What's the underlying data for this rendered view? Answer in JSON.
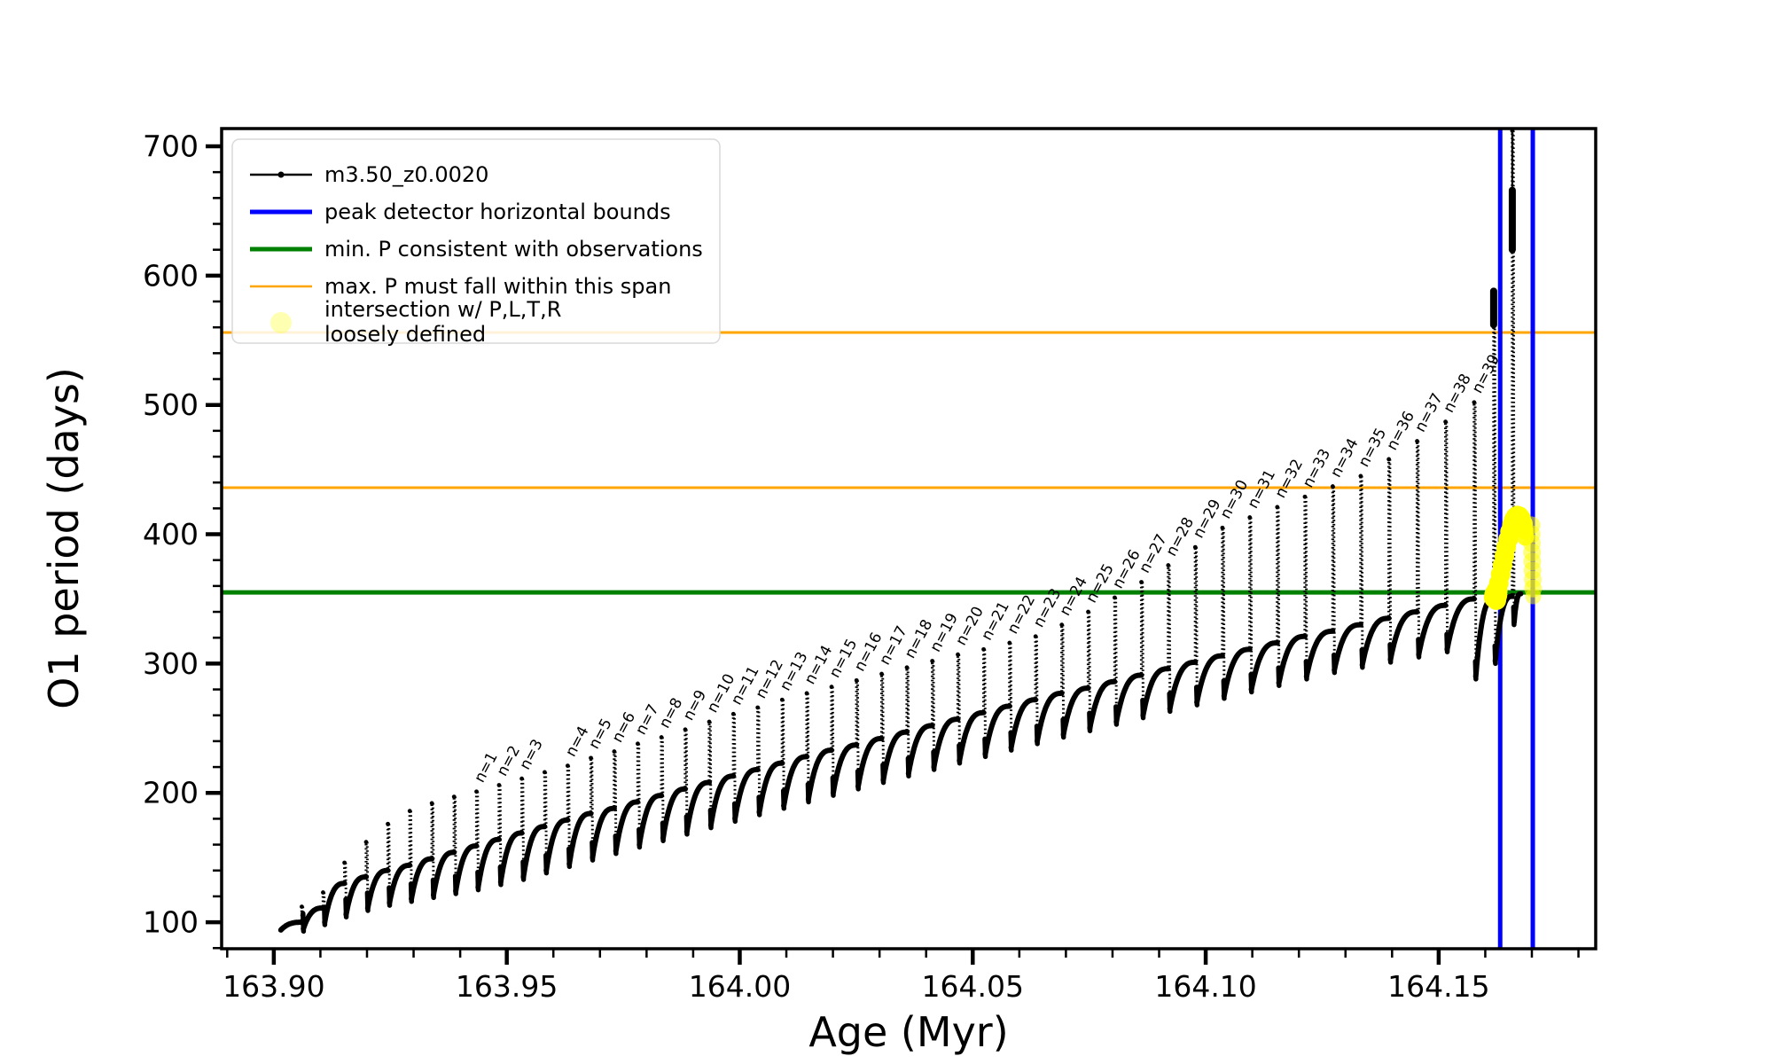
{
  "chart_data": {
    "type": "line",
    "title": "",
    "xlabel": "Age (Myr)",
    "ylabel": "O1 period (days)",
    "xlim": [
      163.8888,
      164.1837
    ],
    "ylim": [
      79.5,
      713.7
    ],
    "grid": false,
    "x_ticks": [
      163.9,
      163.95,
      164.0,
      164.05,
      164.1,
      164.15
    ],
    "x_tick_labels": [
      "163.90",
      "163.95",
      "164.00",
      "164.05",
      "164.10",
      "164.15"
    ],
    "x_minor_step": 0.01,
    "y_ticks": [
      100,
      200,
      300,
      400,
      500,
      600,
      700
    ],
    "y_tick_labels": [
      "100",
      "200",
      "300",
      "400",
      "500",
      "600",
      "700"
    ],
    "y_minor_step": 20,
    "series": [
      {
        "name": "m3.50_z0.0020",
        "color": "#000000",
        "style": "dotted pulse track"
      }
    ],
    "hlines": [
      {
        "name": "max-P-span-upper",
        "y": 556,
        "color": "#ffa500",
        "width": 3
      },
      {
        "name": "max-P-span-lower",
        "y": 436,
        "color": "#ffa500",
        "width": 3
      },
      {
        "name": "min-P-observed",
        "y": 355,
        "color": "#008000",
        "width": 5
      }
    ],
    "vlines": [
      {
        "name": "peak-detector-left",
        "x": 164.1632,
        "color": "#0000ff",
        "width": 5
      },
      {
        "name": "peak-detector-right",
        "x": 164.1702,
        "color": "#0000ff",
        "width": 5
      }
    ],
    "track_start": {
      "age": 163.9015,
      "value": 94
    },
    "track_end": {
      "age": 164.1676,
      "value": 354
    },
    "pulses": [
      {
        "a": 163.906,
        "s": 112,
        "p": 100,
        "d": 93
      },
      {
        "a": 163.91057,
        "s": 123,
        "p": 111,
        "d": 98
      },
      {
        "a": 163.91517,
        "s": 146,
        "p": 130,
        "d": 104
      },
      {
        "a": 163.91981,
        "s": 162,
        "p": 135,
        "d": 109
      },
      {
        "a": 163.92448,
        "s": 176,
        "p": 140,
        "d": 113
      },
      {
        "a": 163.92918,
        "s": 186,
        "p": 144,
        "d": 116
      },
      {
        "a": 163.93392,
        "s": 192,
        "p": 149,
        "d": 119
      },
      {
        "a": 163.93869,
        "s": 197,
        "p": 154,
        "d": 122
      },
      {
        "a": 163.9435,
        "s": 201,
        "p": 159,
        "d": 125,
        "label": "n=1"
      },
      {
        "a": 163.94834,
        "s": 206,
        "p": 164,
        "d": 129,
        "label": "n=2"
      },
      {
        "a": 163.95322,
        "s": 211,
        "p": 169,
        "d": 133,
        "label": "n=3"
      },
      {
        "a": 163.95813,
        "s": 216,
        "p": 174,
        "d": 138
      },
      {
        "a": 163.96307,
        "s": 221,
        "p": 179,
        "d": 143,
        "label": "n=4"
      },
      {
        "a": 163.96805,
        "s": 227,
        "p": 184,
        "d": 148,
        "label": "n=5"
      },
      {
        "a": 163.97306,
        "s": 232,
        "p": 188,
        "d": 153,
        "label": "n=6"
      },
      {
        "a": 163.97811,
        "s": 238,
        "p": 193,
        "d": 158,
        "label": "n=7"
      },
      {
        "a": 163.98319,
        "s": 243,
        "p": 198,
        "d": 163,
        "label": "n=8"
      },
      {
        "a": 163.9883,
        "s": 249,
        "p": 203,
        "d": 168,
        "label": "n=9"
      },
      {
        "a": 163.99345,
        "s": 255,
        "p": 208,
        "d": 173,
        "label": "n=10"
      },
      {
        "a": 163.99863,
        "s": 261,
        "p": 213,
        "d": 178,
        "label": "n=11"
      },
      {
        "a": 164.00385,
        "s": 266,
        "p": 218,
        "d": 183,
        "label": "n=12"
      },
      {
        "a": 164.0091,
        "s": 272,
        "p": 223,
        "d": 188,
        "label": "n=13"
      },
      {
        "a": 164.01438,
        "s": 277,
        "p": 228,
        "d": 193,
        "label": "n=14"
      },
      {
        "a": 164.0197,
        "s": 282,
        "p": 233,
        "d": 198,
        "label": "n=15"
      },
      {
        "a": 164.02506,
        "s": 287,
        "p": 237,
        "d": 203,
        "label": "n=16"
      },
      {
        "a": 164.03045,
        "s": 292,
        "p": 242,
        "d": 208,
        "label": "n=17"
      },
      {
        "a": 164.03587,
        "s": 297,
        "p": 247,
        "d": 213,
        "label": "n=18"
      },
      {
        "a": 164.04132,
        "s": 302,
        "p": 252,
        "d": 218,
        "label": "n=19"
      },
      {
        "a": 164.04681,
        "s": 307,
        "p": 257,
        "d": 223,
        "label": "n=20"
      },
      {
        "a": 164.05234,
        "s": 311,
        "p": 262,
        "d": 228,
        "label": "n=21"
      },
      {
        "a": 164.0579,
        "s": 316,
        "p": 267,
        "d": 233,
        "label": "n=22"
      },
      {
        "a": 164.06349,
        "s": 321,
        "p": 272,
        "d": 238,
        "label": "n=23"
      },
      {
        "a": 164.06911,
        "s": 330,
        "p": 277,
        "d": 243,
        "label": "n=24"
      },
      {
        "a": 164.07478,
        "s": 340,
        "p": 281,
        "d": 248,
        "label": "n=25"
      },
      {
        "a": 164.08047,
        "s": 351,
        "p": 286,
        "d": 253,
        "label": "n=26"
      },
      {
        "a": 164.0862,
        "s": 363,
        "p": 291,
        "d": 258,
        "label": "n=27"
      },
      {
        "a": 164.09196,
        "s": 376,
        "p": 296,
        "d": 263,
        "label": "n=28"
      },
      {
        "a": 164.09776,
        "s": 390,
        "p": 301,
        "d": 268,
        "label": "n=29"
      },
      {
        "a": 164.10359,
        "s": 405,
        "p": 306,
        "d": 273,
        "label": "n=30"
      },
      {
        "a": 164.10946,
        "s": 413,
        "p": 311,
        "d": 278,
        "label": "n=31"
      },
      {
        "a": 164.11536,
        "s": 421,
        "p": 316,
        "d": 283,
        "label": "n=32"
      },
      {
        "a": 164.12129,
        "s": 429,
        "p": 321,
        "d": 288,
        "label": "n=33"
      },
      {
        "a": 164.12726,
        "s": 437,
        "p": 325,
        "d": 293,
        "label": "n=34"
      },
      {
        "a": 164.13326,
        "s": 445,
        "p": 330,
        "d": 297,
        "label": "n=35"
      },
      {
        "a": 164.1393,
        "s": 458,
        "p": 335,
        "d": 301,
        "label": "n=36"
      },
      {
        "a": 164.14537,
        "s": 472,
        "p": 340,
        "d": 305,
        "label": "n=37"
      },
      {
        "a": 164.15147,
        "s": 487,
        "p": 345,
        "d": 309,
        "label": "n=38"
      },
      {
        "a": 164.15761,
        "s": 502,
        "p": 350,
        "d": 288,
        "label": "n=39"
      },
      {
        "a": 164.1618,
        "s": 588,
        "p": 350,
        "d": 300,
        "blob": [
          588,
          562
        ]
      },
      {
        "a": 164.1658,
        "s": 712,
        "p": 352,
        "d": 330,
        "blob": [
          666,
          620
        ]
      }
    ],
    "intersection_markers": {
      "color": "#ffff00",
      "points": [
        [
          164.1618,
          354,
          10,
          0.8
        ],
        [
          164.162,
          351,
          12,
          1
        ],
        [
          164.16225,
          353,
          13,
          1
        ],
        [
          164.1624,
          349,
          11,
          1
        ],
        [
          164.1625,
          356,
          12,
          1
        ],
        [
          164.1629,
          362,
          11,
          1
        ],
        [
          164.1633,
          369,
          11,
          1
        ],
        [
          164.1637,
          376,
          11,
          1
        ],
        [
          164.1641,
          383,
          11,
          1
        ],
        [
          164.1645,
          390,
          11,
          1
        ],
        [
          164.1649,
          396,
          11,
          1
        ],
        [
          164.1653,
          402,
          11,
          1
        ],
        [
          164.1657,
          407,
          11,
          1
        ],
        [
          164.1661,
          411,
          11,
          1
        ],
        [
          164.1665,
          413.5,
          11,
          1
        ],
        [
          164.1669,
          414.5,
          11,
          1
        ],
        [
          164.1673,
          414,
          11,
          1
        ],
        [
          164.1677,
          412,
          11,
          1
        ],
        [
          164.1681,
          408,
          11,
          1
        ],
        [
          164.1684,
          403,
          10,
          1
        ],
        [
          164.1686,
          398,
          10,
          0.9
        ],
        [
          164.1699,
          407,
          10,
          0.55
        ],
        [
          164.16995,
          400,
          10,
          0.5
        ],
        [
          164.17,
          393,
          10,
          0.5
        ],
        [
          164.17005,
          386,
          10,
          0.5
        ],
        [
          164.1701,
          379,
          10,
          0.5
        ],
        [
          164.17015,
          372,
          10,
          0.5
        ],
        [
          164.1702,
          365,
          10,
          0.5
        ],
        [
          164.17025,
          358,
          10,
          0.55
        ],
        [
          164.1703,
          352,
          9,
          0.5
        ]
      ]
    }
  },
  "legend": {
    "entries": [
      {
        "sample": "line-dot",
        "color": "#000000",
        "width": 2.5,
        "label": "m3.50_z0.0020"
      },
      {
        "sample": "line-thick",
        "color": "#0000ff",
        "width": 5,
        "label": "peak detector horizontal bounds"
      },
      {
        "sample": "line-thick",
        "color": "#008000",
        "width": 5,
        "label": "min. P consistent with observations"
      },
      {
        "sample": "line",
        "color": "#ffa500",
        "width": 2.5,
        "label": "max. P must fall within this span"
      },
      {
        "sample": "dot",
        "color": "rgba(255,255,0,0.3)",
        "label": "intersection w/ P,L,T,R",
        "label2": "loosely defined"
      }
    ]
  },
  "colors": {
    "series": "#000000",
    "peak_bounds": "#0000ff",
    "min_p": "#008000",
    "max_p": "#ffa500",
    "intersection": "#ffff00",
    "background": "#ffffff"
  }
}
